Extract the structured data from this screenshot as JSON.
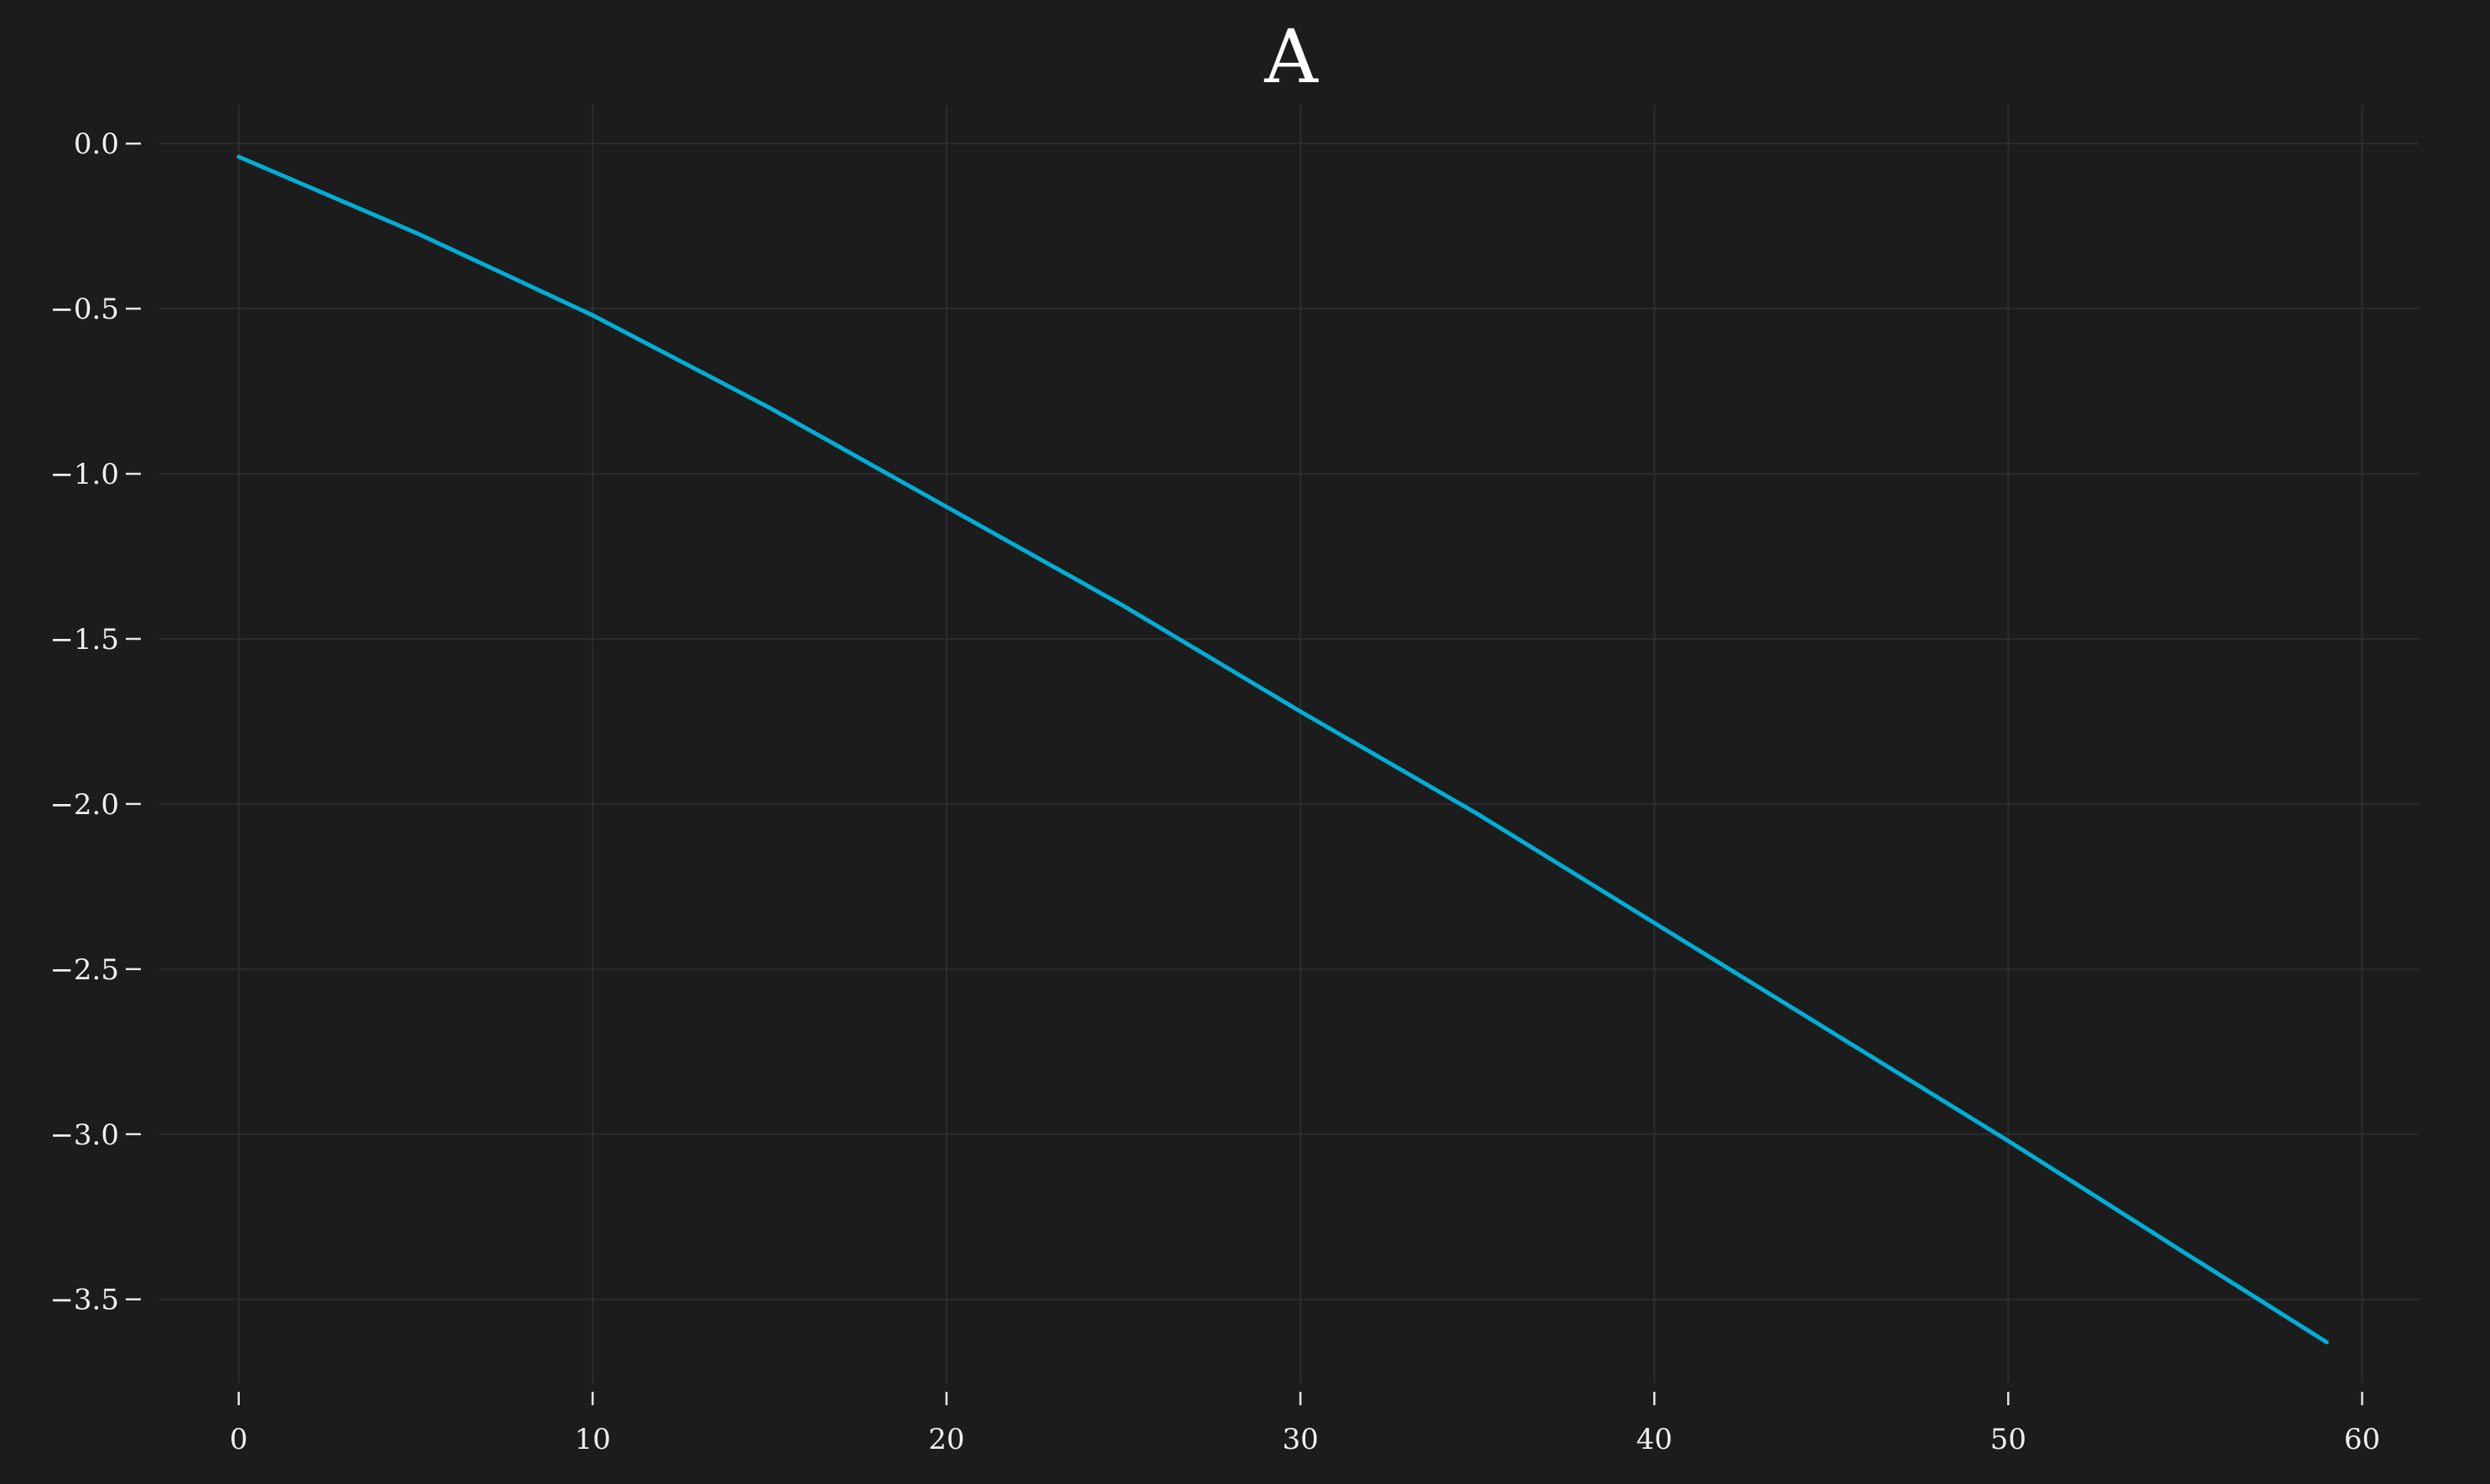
{
  "colors": {
    "background": "#1c1c1c",
    "grid": "#3a3a3a",
    "text": "#f0f0f0",
    "series": "#00aed6"
  },
  "chart_data": {
    "type": "line",
    "title": "A",
    "xlabel": "",
    "ylabel": "",
    "xlim": [
      -2.6,
      61.6
    ],
    "ylim": [
      -3.78,
      0.13
    ],
    "xticks": [
      0,
      10,
      20,
      30,
      40,
      50,
      60
    ],
    "yticks": [
      0.0,
      -0.5,
      -1.0,
      -1.5,
      -2.0,
      -2.5,
      -3.0,
      -3.5
    ],
    "xtick_labels": [
      "0",
      "10",
      "20",
      "30",
      "40",
      "50",
      "60"
    ],
    "ytick_labels": [
      "0.0",
      "−0.5",
      "−1.0",
      "−1.5",
      "−2.0",
      "−2.5",
      "−3.0",
      "−3.5"
    ],
    "grid": true,
    "legend": "none",
    "series": [
      {
        "x": [
          0,
          5,
          10,
          15,
          20,
          25,
          30,
          35,
          40,
          45,
          50,
          55,
          59
        ],
        "y": [
          -0.04,
          -0.27,
          -0.52,
          -0.8,
          -1.1,
          -1.4,
          -1.72,
          -2.03,
          -2.36,
          -2.69,
          -3.02,
          -3.36,
          -3.63
        ]
      }
    ]
  }
}
